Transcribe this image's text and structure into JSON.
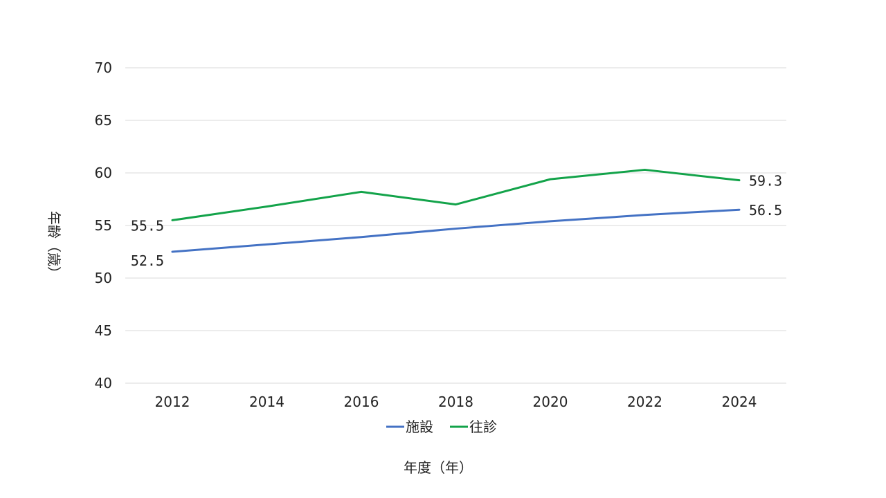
{
  "chart_data": {
    "type": "line",
    "title": "",
    "xlabel": "年度（年）",
    "ylabel": "年齢（歳）",
    "ylim": [
      40,
      70
    ],
    "yticks": [
      "40",
      "45",
      "50",
      "55",
      "60",
      "65",
      "70"
    ],
    "categories": [
      "2012",
      "2014",
      "2016",
      "2018",
      "2020",
      "2022",
      "2024"
    ],
    "grid": true,
    "legend_position": "bottom",
    "series": [
      {
        "name": "施設",
        "color": "#4472c4",
        "values": [
          52.5,
          53.2,
          53.9,
          54.7,
          55.4,
          56.0,
          56.5
        ],
        "data_labels": [
          "52.5",
          "",
          "",
          "",
          "",
          "",
          "56.5"
        ]
      },
      {
        "name": "往診",
        "color": "#13a34a",
        "values": [
          55.5,
          56.8,
          58.2,
          57.0,
          59.4,
          60.3,
          59.3
        ],
        "data_labels": [
          "55.5",
          "",
          "",
          "",
          "",
          "",
          "59.3"
        ]
      }
    ]
  }
}
